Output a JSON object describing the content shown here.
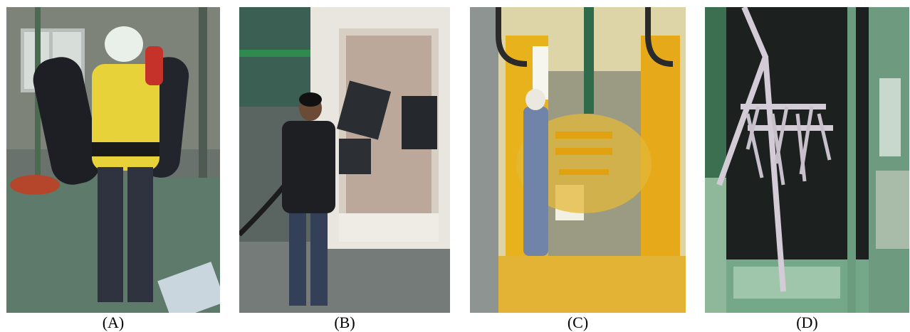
{
  "panels": [
    {
      "label": "(A)"
    },
    {
      "label": "(B)"
    },
    {
      "label": "(C)"
    },
    {
      "label": "(D)"
    }
  ],
  "colors": {
    "floor_green": "#5d7a6a",
    "powder_yellow": "#e8b21c",
    "booth_white": "#e9e6df",
    "dark_jacket": "#1d1f22",
    "green_structure": "#3f8f6a"
  }
}
